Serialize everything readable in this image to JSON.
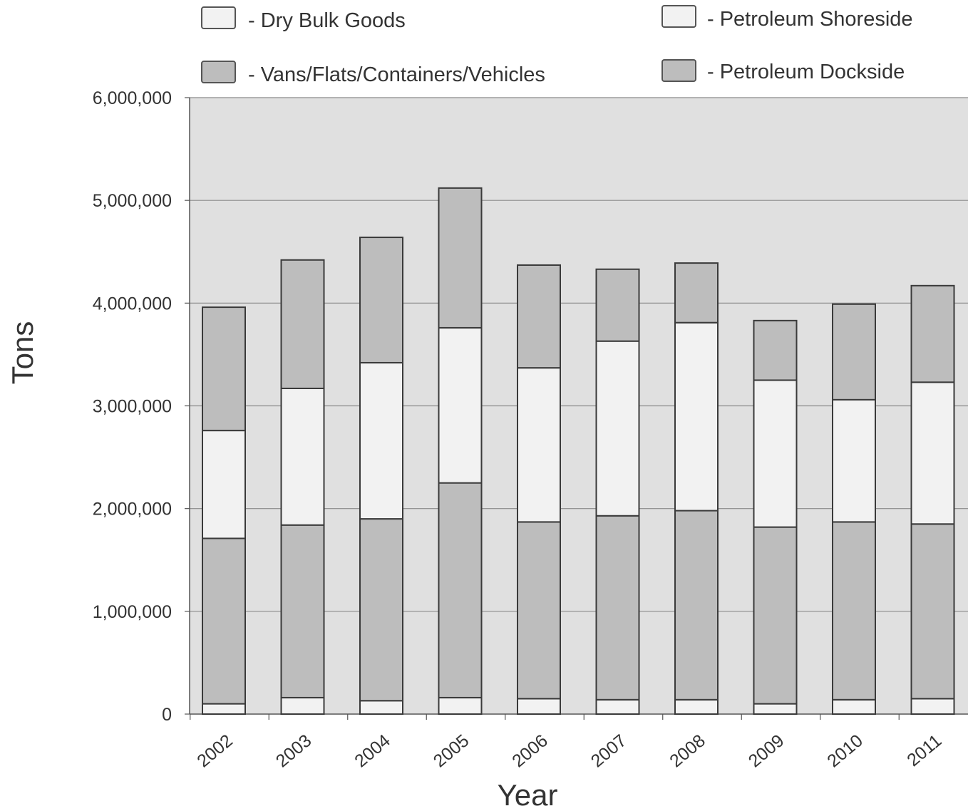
{
  "chart_data": {
    "type": "bar",
    "stacked": true,
    "xlabel": "Year",
    "ylabel": "Tons",
    "ylim": [
      0,
      6000000
    ],
    "y_ticks": [
      "0",
      "1,000,000",
      "2,000,000",
      "3,000,000",
      "4,000,000",
      "5,000,000",
      "6,000,000"
    ],
    "grid": true,
    "legend_position": "top",
    "categories": [
      "2002",
      "2003",
      "2004",
      "2005",
      "2006",
      "2007",
      "2008",
      "2009",
      "2010",
      "2011"
    ],
    "series": [
      {
        "name": "- Dry Bulk Goods",
        "color": "#f2f2f2",
        "values": [
          100000,
          160000,
          130000,
          160000,
          150000,
          140000,
          140000,
          100000,
          140000,
          150000
        ]
      },
      {
        "name": "- Vans/Flats/Containers/Vehicles",
        "color": "#bdbdbd",
        "values": [
          1610000,
          1680000,
          1770000,
          2090000,
          1720000,
          1790000,
          1840000,
          1720000,
          1730000,
          1700000
        ]
      },
      {
        "name": "- Petroleum Shoreside",
        "color": "#f2f2f2",
        "values": [
          1050000,
          1330000,
          1520000,
          1510000,
          1500000,
          1700000,
          1830000,
          1430000,
          1190000,
          1380000
        ]
      },
      {
        "name": "- Petroleum Dockside",
        "color": "#bdbdbd",
        "values": [
          1200000,
          1250000,
          1220000,
          1360000,
          1000000,
          700000,
          580000,
          580000,
          930000,
          940000
        ]
      }
    ],
    "colors": {
      "plot_bg": "#e0e0e0",
      "grid": "#8a8a8a",
      "bar_stroke": "#3a3a3a"
    }
  }
}
